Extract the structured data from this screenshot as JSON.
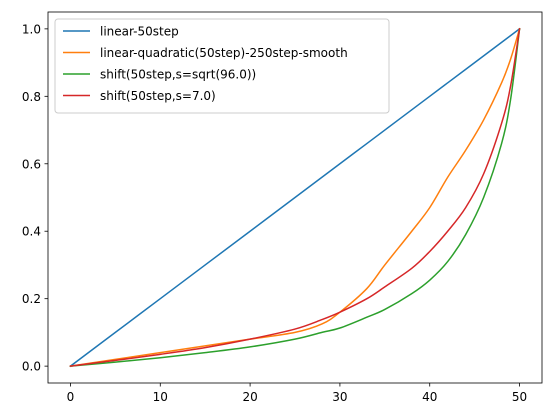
{
  "chart_data": {
    "type": "line",
    "title": "",
    "xlabel": "",
    "ylabel": "",
    "xlim": [
      -2.5,
      52.5
    ],
    "ylim": [
      -0.05,
      1.05
    ],
    "xticks": [
      0,
      10,
      20,
      30,
      40,
      50
    ],
    "xtick_labels": [
      "0",
      "10",
      "20",
      "30",
      "40",
      "50"
    ],
    "yticks": [
      0.0,
      0.2,
      0.4,
      0.6,
      0.8,
      1.0
    ],
    "ytick_labels": [
      "0.0",
      "0.2",
      "0.4",
      "0.6",
      "0.8",
      "1.0"
    ],
    "grid": false,
    "legend_position": "top-left",
    "x": [
      0,
      5,
      10,
      15,
      20,
      25,
      28,
      30,
      33,
      35,
      38,
      40,
      42,
      44,
      46,
      48,
      49,
      50
    ],
    "series": [
      {
        "name": "linear-50step",
        "color": "#1f77b4",
        "values": [
          0.0,
          0.1,
          0.2,
          0.3,
          0.4,
          0.5,
          0.56,
          0.6,
          0.66,
          0.7,
          0.76,
          0.8,
          0.84,
          0.88,
          0.92,
          0.96,
          0.98,
          1.0
        ]
      },
      {
        "name": "linear-quadratic(50step)-250step-smooth",
        "color": "#ff7f0e",
        "values": [
          0.0,
          0.02,
          0.04,
          0.06,
          0.08,
          0.1,
          0.125,
          0.16,
          0.23,
          0.3,
          0.4,
          0.47,
          0.56,
          0.64,
          0.73,
          0.84,
          0.91,
          1.0
        ]
      },
      {
        "name": "shift(50step,s=sqrt(96.0))",
        "color": "#2ca02c",
        "values": [
          0.0,
          0.012,
          0.025,
          0.04,
          0.057,
          0.08,
          0.1,
          0.113,
          0.145,
          0.168,
          0.215,
          0.255,
          0.31,
          0.39,
          0.5,
          0.66,
          0.79,
          1.0
        ]
      },
      {
        "name": "shift(50step,s=7.0)",
        "color": "#d62728",
        "values": [
          0.0,
          0.017,
          0.035,
          0.055,
          0.08,
          0.11,
          0.138,
          0.16,
          0.2,
          0.235,
          0.29,
          0.34,
          0.4,
          0.47,
          0.57,
          0.72,
          0.83,
          1.0
        ]
      }
    ]
  }
}
